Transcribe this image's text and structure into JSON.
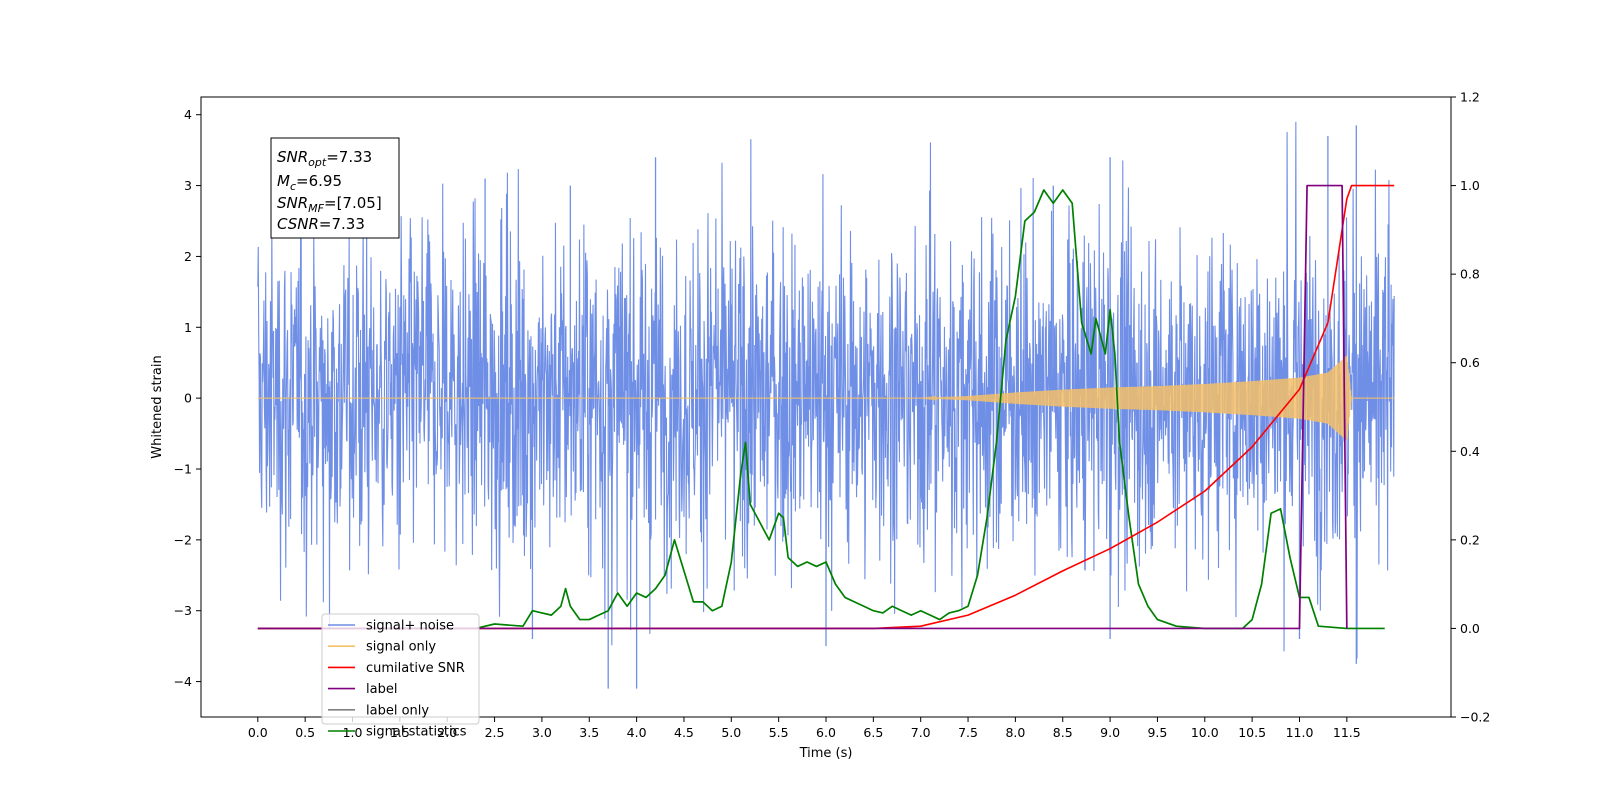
{
  "chart_data": {
    "type": "line",
    "xlabel": "Time (s)",
    "ylabel_left": "Whitened strain",
    "ylabel_right": "",
    "xlim": [
      -0.6,
      12.6
    ],
    "ylim_left": [
      -4.5,
      4.25
    ],
    "ylim_right": [
      -0.2,
      1.2
    ],
    "x_ticks": [
      "0.0",
      "0.5",
      "1.0",
      "1.5",
      "2.0",
      "2.5",
      "3.0",
      "3.5",
      "4.0",
      "4.5",
      "5.0",
      "5.5",
      "6.0",
      "6.5",
      "7.0",
      "7.5",
      "8.0",
      "8.5",
      "9.0",
      "9.5",
      "10.0",
      "10.5",
      "11.0",
      "11.5"
    ],
    "y_ticks_left": [
      "4",
      "3",
      "2",
      "1",
      "0",
      "−1",
      "−2",
      "−3",
      "−4"
    ],
    "y_ticks_right": [
      "1.2",
      "1.0",
      "0.8",
      "0.6",
      "0.4",
      "0.2",
      "0.0",
      "−0.2"
    ],
    "grid": false,
    "legend": {
      "placement": "lower-left",
      "entries": [
        {
          "label": "signal+ noise",
          "color": "#6f8ee6"
        },
        {
          "label": "signal only",
          "color": "#f5c067"
        },
        {
          "label": "cumilative SNR",
          "color": "#ff0000"
        },
        {
          "label": "label",
          "color": "#800080"
        },
        {
          "label": "label only",
          "color": "#808080"
        },
        {
          "label": "signal statistics",
          "color": "#008000"
        }
      ]
    },
    "annotation": {
      "snr_opt_main": "SNR",
      "snr_opt_sub": "opt",
      "snr_opt_val": "=7.33",
      "mc_main": "M",
      "mc_sub": "c",
      "mc_val": "=6.95",
      "snr_mf_main": "SNR",
      "snr_mf_sub": "MF",
      "snr_mf_val": "=[7.05]",
      "csnr_main": "CSNR",
      "csnr_val": "=7.33"
    },
    "series": [
      {
        "name": "signal+ noise",
        "axis": "left",
        "color": "#6f8ee6",
        "x_range": [
          0.0,
          12.0
        ],
        "typical_band": [
          -1.8,
          1.9
        ],
        "peaks_high": [
          [
            4.2,
            3.4
          ],
          [
            9.0,
            3.4
          ],
          [
            11.3,
            3.7
          ],
          [
            11.6,
            3.85
          ],
          [
            3.3,
            3.0
          ],
          [
            8.4,
            3.0
          ],
          [
            2.4,
            3.1
          ]
        ],
        "peaks_low": [
          [
            3.7,
            -4.1
          ],
          [
            4.0,
            -4.1
          ],
          [
            11.6,
            -3.75
          ],
          [
            6.0,
            -3.5
          ],
          [
            9.0,
            -3.4
          ],
          [
            11.0,
            -3.4
          ],
          [
            2.9,
            -3.4
          ]
        ]
      },
      {
        "name": "signal only",
        "axis": "left",
        "color": "#f5c067",
        "x": [
          0,
          7.0,
          7.5,
          8.0,
          8.5,
          9.0,
          9.5,
          10.0,
          10.5,
          11.0,
          11.3,
          11.5,
          11.55,
          12.0
        ],
        "envelope": [
          0,
          0.0,
          0.03,
          0.08,
          0.12,
          0.15,
          0.17,
          0.2,
          0.24,
          0.29,
          0.36,
          0.6,
          0.0,
          0.0
        ]
      },
      {
        "name": "cumilative SNR",
        "axis": "right",
        "color": "#ff0000",
        "x": [
          0,
          6.5,
          7.0,
          7.5,
          8.0,
          8.5,
          9.0,
          9.5,
          10.0,
          10.5,
          11.0,
          11.3,
          11.5,
          11.55,
          12.0
        ],
        "y": [
          0,
          0.0,
          0.005,
          0.03,
          0.075,
          0.13,
          0.18,
          0.24,
          0.31,
          0.41,
          0.54,
          0.69,
          0.97,
          1.0,
          1.0
        ]
      },
      {
        "name": "label",
        "axis": "right",
        "color": "#800080",
        "x": [
          0.0,
          11.0,
          11.08,
          11.45,
          11.5
        ],
        "y": [
          0.0,
          0.0,
          1.0,
          1.0,
          0.0
        ]
      },
      {
        "name": "signal statistics",
        "axis": "right",
        "color": "#008000",
        "x": [
          0.0,
          2.3,
          2.5,
          2.8,
          2.9,
          3.0,
          3.1,
          3.2,
          3.25,
          3.3,
          3.4,
          3.5,
          3.6,
          3.7,
          3.8,
          3.9,
          4.0,
          4.1,
          4.2,
          4.3,
          4.4,
          4.5,
          4.6,
          4.7,
          4.8,
          4.9,
          5.0,
          5.1,
          5.15,
          5.2,
          5.3,
          5.4,
          5.5,
          5.55,
          5.6,
          5.7,
          5.8,
          5.9,
          6.0,
          6.1,
          6.2,
          6.3,
          6.4,
          6.5,
          6.6,
          6.7,
          6.8,
          6.9,
          7.0,
          7.1,
          7.2,
          7.3,
          7.4,
          7.5,
          7.6,
          7.7,
          7.8,
          7.9,
          8.0,
          8.1,
          8.2,
          8.3,
          8.4,
          8.5,
          8.6,
          8.7,
          8.8,
          8.85,
          8.9,
          8.95,
          9.0,
          9.05,
          9.1,
          9.2,
          9.3,
          9.4,
          9.5,
          9.7,
          10.0,
          10.3,
          10.4,
          10.5,
          10.6,
          10.7,
          10.8,
          10.9,
          11.0,
          11.1,
          11.2,
          11.5,
          11.6,
          11.9
        ],
        "y": [
          0.0,
          0.0,
          0.01,
          0.005,
          0.04,
          0.035,
          0.03,
          0.05,
          0.09,
          0.05,
          0.02,
          0.02,
          0.03,
          0.04,
          0.08,
          0.05,
          0.08,
          0.07,
          0.09,
          0.12,
          0.2,
          0.13,
          0.06,
          0.06,
          0.04,
          0.05,
          0.15,
          0.35,
          0.42,
          0.28,
          0.24,
          0.2,
          0.26,
          0.25,
          0.16,
          0.14,
          0.15,
          0.14,
          0.15,
          0.1,
          0.07,
          0.06,
          0.05,
          0.04,
          0.035,
          0.05,
          0.04,
          0.03,
          0.04,
          0.03,
          0.02,
          0.035,
          0.04,
          0.05,
          0.12,
          0.25,
          0.42,
          0.65,
          0.75,
          0.92,
          0.94,
          0.99,
          0.96,
          0.99,
          0.96,
          0.69,
          0.62,
          0.7,
          0.66,
          0.62,
          0.72,
          0.62,
          0.42,
          0.25,
          0.1,
          0.05,
          0.02,
          0.005,
          0.0,
          0.0,
          0.0,
          0.02,
          0.1,
          0.26,
          0.27,
          0.16,
          0.07,
          0.07,
          0.005,
          0.0,
          0.0,
          0.0
        ]
      }
    ]
  }
}
